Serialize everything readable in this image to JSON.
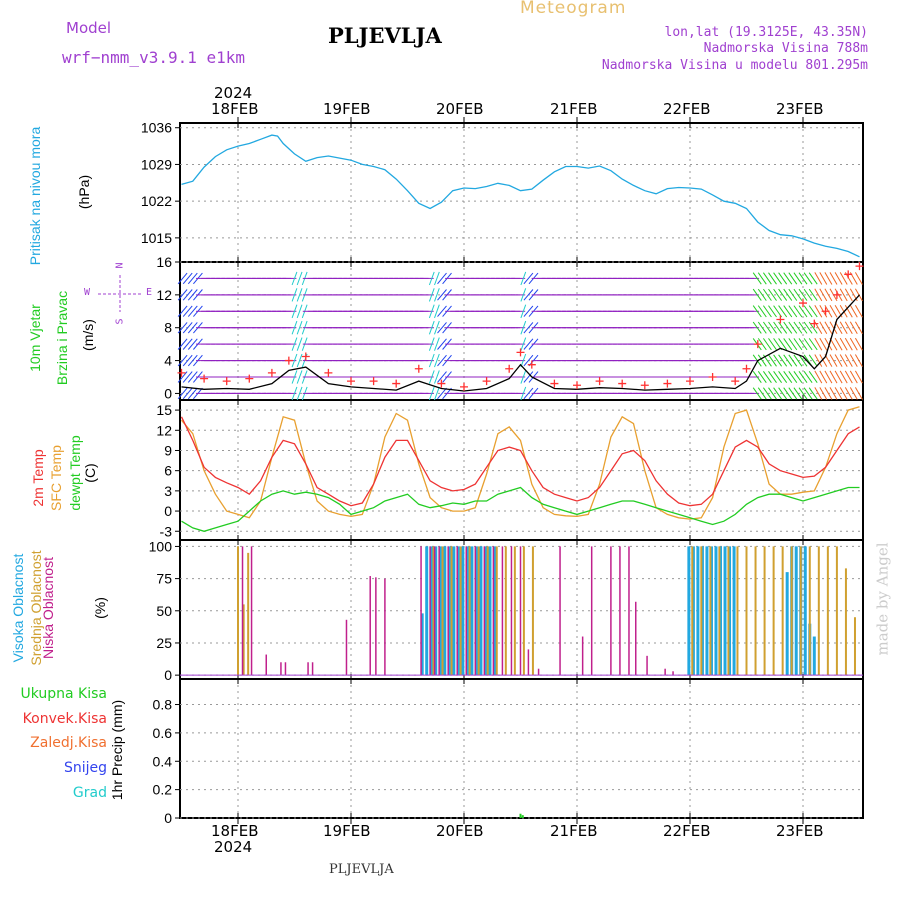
{
  "header": {
    "model_label": "Model",
    "model_name": "wrf−nmm_v3.9.1  e1km",
    "station": "PLJEVLJA",
    "meteogram": "Meteogram",
    "lonlat": "lon,lat (19.3125E, 43.35N)",
    "elevation": "Nadmorska Visina 788m",
    "model_elevation": "Nadmorska Visina u modelu 801.295m"
  },
  "footer": {
    "station": "PLJEVLJA",
    "watermark": "made by Angel"
  },
  "time_axis": {
    "year_top": "2024",
    "year_bottom": "2024",
    "dates": [
      "18FEB",
      "19FEB",
      "20FEB",
      "21FEB",
      "22FEB",
      "23FEB"
    ]
  },
  "wind_legend": {
    "n": "N",
    "s": "S",
    "e": "E",
    "w": "W"
  },
  "colors": {
    "pressure": "#22a8e0",
    "wind_speed": "#000000",
    "wind_gust": "#ff3030",
    "temp2m": "#ee3333",
    "sfc_temp": "#e8a030",
    "dewpoint": "#22cc22",
    "high_cloud": "#22a8e0",
    "mid_cloud": "#d0a030",
    "low_cloud": "#c0208c",
    "arrow_purple": "#9020c0",
    "arrow_blue": "#2244ee",
    "arrow_cyan": "#22cccc",
    "arrow_green": "#22cc22"
  },
  "chart_data": [
    {
      "type": "line",
      "panel": "pressure",
      "ylabel": [
        "Pritisak na nivou mora",
        "(hPa)"
      ],
      "yticks": [
        1015,
        1022,
        1029,
        1036
      ],
      "ylim": [
        1010.4,
        1036.9
      ],
      "x_unit": "days after 18FEB 00UTC",
      "x_range": [
        -0.5,
        5.5
      ],
      "x": [
        -0.5,
        -0.4,
        -0.3,
        -0.2,
        -0.1,
        0.0,
        0.1,
        0.2,
        0.3,
        0.35,
        0.4,
        0.5,
        0.6,
        0.7,
        0.8,
        0.9,
        1.0,
        1.1,
        1.2,
        1.3,
        1.4,
        1.5,
        1.6,
        1.7,
        1.8,
        1.9,
        2.0,
        2.1,
        2.2,
        2.3,
        2.4,
        2.5,
        2.6,
        2.7,
        2.8,
        2.9,
        3.0,
        3.1,
        3.2,
        3.3,
        3.4,
        3.5,
        3.6,
        3.7,
        3.8,
        3.9,
        4.0,
        4.1,
        4.2,
        4.3,
        4.4,
        4.5,
        4.6,
        4.7,
        4.8,
        4.9,
        5.0,
        5.1,
        5.2,
        5.3,
        5.4,
        5.5
      ],
      "series": [
        {
          "name": "Pritisak na nivou mora",
          "values": [
            1025.2,
            1025.8,
            1028.5,
            1030.5,
            1031.8,
            1032.5,
            1033.0,
            1033.8,
            1034.6,
            1034.4,
            1033.0,
            1031.0,
            1029.6,
            1030.3,
            1030.6,
            1030.2,
            1029.8,
            1029.0,
            1028.6,
            1028.0,
            1026.2,
            1024.0,
            1021.6,
            1020.6,
            1021.8,
            1024.0,
            1024.5,
            1024.4,
            1024.8,
            1025.4,
            1025.0,
            1024.0,
            1024.3,
            1026.0,
            1027.6,
            1028.6,
            1028.6,
            1028.3,
            1028.7,
            1027.8,
            1026.2,
            1025.0,
            1024.0,
            1023.4,
            1024.4,
            1024.6,
            1024.5,
            1024.3,
            1023.2,
            1022.0,
            1021.6,
            1020.6,
            1018.0,
            1016.4,
            1015.6,
            1015.4,
            1014.8,
            1014.0,
            1013.4,
            1013.0,
            1012.4,
            1011.4
          ]
        }
      ]
    },
    {
      "type": "line",
      "panel": "wind",
      "ylabel": [
        "10m Vjetar",
        "Brzina i Pravac",
        "(m/s)"
      ],
      "yticks": [
        0,
        4,
        8,
        12,
        16
      ],
      "ylim": [
        -0.8,
        16
      ],
      "x_range": [
        -0.5,
        5.5
      ],
      "x": [
        -0.5,
        -0.3,
        -0.1,
        0.1,
        0.3,
        0.45,
        0.6,
        0.8,
        1.0,
        1.2,
        1.4,
        1.6,
        1.8,
        2.0,
        2.2,
        2.4,
        2.5,
        2.6,
        2.8,
        3.0,
        3.2,
        3.4,
        3.6,
        3.8,
        4.0,
        4.2,
        4.4,
        4.5,
        4.6,
        4.8,
        5.0,
        5.1,
        5.2,
        5.3,
        5.4,
        5.5
      ],
      "series": [
        {
          "name": "speed",
          "values": [
            0.8,
            0.5,
            0.6,
            0.5,
            1.2,
            2.8,
            3.2,
            1.2,
            0.8,
            0.6,
            0.4,
            1.5,
            0.6,
            0.3,
            0.6,
            1.8,
            3.5,
            2.0,
            0.6,
            0.5,
            0.7,
            0.6,
            0.4,
            0.5,
            0.6,
            0.8,
            0.6,
            1.5,
            4.0,
            5.5,
            4.5,
            3.0,
            4.5,
            9.0,
            10.5,
            12.0
          ]
        },
        {
          "name": "gust",
          "values": [
            2.5,
            1.8,
            1.5,
            1.8,
            2.5,
            4.0,
            4.5,
            2.5,
            1.5,
            1.5,
            1.2,
            3.0,
            1.2,
            0.8,
            1.5,
            3.0,
            5.0,
            3.5,
            1.2,
            1.0,
            1.5,
            1.2,
            1.0,
            1.2,
            1.5,
            2.0,
            1.5,
            3.0,
            6.0,
            9.0,
            11.0,
            8.5,
            10.0,
            12.0,
            14.5,
            15.5
          ]
        }
      ]
    },
    {
      "type": "line",
      "panel": "temperature",
      "ylabel": [
        "2m Temp",
        "SFC Temp",
        "dewpt Temp",
        "(C)"
      ],
      "yticks": [
        -3,
        0,
        3,
        6,
        9,
        12,
        15
      ],
      "ylim": [
        -4.3,
        16.5
      ],
      "x_range": [
        -0.5,
        5.5
      ],
      "x": [
        -0.5,
        -0.4,
        -0.3,
        -0.2,
        -0.1,
        0.0,
        0.1,
        0.2,
        0.3,
        0.4,
        0.5,
        0.6,
        0.7,
        0.8,
        0.9,
        1.0,
        1.1,
        1.2,
        1.3,
        1.4,
        1.5,
        1.6,
        1.7,
        1.8,
        1.9,
        2.0,
        2.1,
        2.2,
        2.3,
        2.4,
        2.5,
        2.6,
        2.7,
        2.8,
        2.9,
        3.0,
        3.1,
        3.2,
        3.3,
        3.4,
        3.5,
        3.6,
        3.7,
        3.8,
        3.9,
        4.0,
        4.1,
        4.2,
        4.3,
        4.4,
        4.5,
        4.6,
        4.7,
        4.8,
        4.9,
        5.0,
        5.1,
        5.2,
        5.3,
        5.4,
        5.5
      ],
      "series": [
        {
          "name": "2m Temp",
          "values": [
            14.0,
            10.5,
            6.5,
            5.0,
            4.2,
            3.5,
            2.5,
            4.5,
            8.0,
            10.5,
            10.0,
            7.0,
            3.5,
            2.5,
            1.5,
            0.8,
            1.2,
            4.0,
            8.0,
            10.5,
            10.5,
            7.5,
            4.5,
            3.5,
            3.0,
            3.2,
            4.0,
            6.5,
            9.0,
            9.5,
            9.0,
            6.0,
            3.5,
            2.5,
            2.0,
            1.5,
            2.0,
            3.5,
            6.0,
            8.5,
            9.0,
            7.5,
            4.5,
            2.5,
            1.2,
            0.8,
            1.0,
            2.5,
            6.0,
            9.5,
            10.5,
            9.5,
            7.0,
            6.0,
            5.5,
            5.0,
            5.2,
            6.5,
            9.0,
            11.5,
            12.5
          ]
        },
        {
          "name": "SFC Temp",
          "values": [
            13.5,
            11.5,
            6.0,
            2.5,
            0.0,
            -0.5,
            -1.0,
            1.5,
            8.0,
            14.0,
            13.5,
            7.0,
            1.5,
            0.0,
            -0.5,
            -0.8,
            -0.5,
            4.0,
            11.0,
            14.5,
            13.5,
            7.0,
            2.0,
            0.5,
            0.0,
            0.0,
            0.5,
            5.5,
            11.5,
            12.5,
            10.5,
            4.0,
            0.5,
            -0.5,
            -0.7,
            -0.8,
            -0.5,
            4.0,
            11.0,
            14.0,
            13.0,
            6.0,
            0.5,
            -0.5,
            -1.0,
            -1.2,
            -1.0,
            2.0,
            9.5,
            14.5,
            15.0,
            10.0,
            4.0,
            2.5,
            2.5,
            2.8,
            3.0,
            6.5,
            11.5,
            15.0,
            15.5
          ]
        },
        {
          "name": "dewpt Temp",
          "values": [
            -1.5,
            -2.5,
            -3.0,
            -2.5,
            -2.0,
            -1.5,
            0.0,
            1.5,
            2.5,
            3.0,
            2.5,
            2.8,
            2.5,
            2.0,
            1.0,
            -0.5,
            0.0,
            0.5,
            1.5,
            2.0,
            2.5,
            1.0,
            0.5,
            0.8,
            1.2,
            1.0,
            1.5,
            1.5,
            2.5,
            3.0,
            3.5,
            2.0,
            1.0,
            0.5,
            0.0,
            -0.5,
            0.0,
            0.5,
            1.0,
            1.5,
            1.5,
            1.0,
            0.5,
            0.0,
            -0.5,
            -1.0,
            -1.5,
            -2.0,
            -1.5,
            -0.5,
            1.0,
            2.0,
            2.5,
            2.5,
            2.0,
            1.5,
            2.0,
            2.5,
            3.0,
            3.5,
            3.5
          ]
        }
      ]
    },
    {
      "type": "bar",
      "panel": "clouds",
      "ylabel": [
        "Visoka Oblacnost",
        "Srednja Oblacnost",
        "Niska Oblacnost",
        "(%)"
      ],
      "yticks": [
        0,
        25,
        50,
        75,
        100
      ],
      "ylim": [
        -3,
        105
      ],
      "x_range": [
        -0.5,
        5.5
      ],
      "series": [
        {
          "name": "Visoka Oblacnost",
          "x": [
            1.63,
            1.67,
            1.71,
            1.75,
            1.79,
            1.83,
            1.87,
            1.91,
            1.95,
            1.99,
            2.03,
            2.07,
            2.11,
            2.15,
            2.19,
            2.23,
            2.27,
            3.99,
            4.03,
            4.07,
            4.11,
            4.15,
            4.19,
            4.23,
            4.27,
            4.31,
            4.35,
            4.39,
            4.86,
            4.9,
            4.94,
            4.98,
            5.02,
            5.06,
            5.1
          ],
          "values": [
            48,
            100,
            100,
            100,
            100,
            100,
            100,
            100,
            100,
            100,
            100,
            100,
            100,
            100,
            100,
            100,
            100,
            100,
            100,
            100,
            100,
            100,
            100,
            100,
            100,
            100,
            100,
            100,
            80,
            100,
            100,
            100,
            100,
            40,
            30
          ]
        },
        {
          "name": "Srednja Oblacnost",
          "x": [
            0.0,
            0.05,
            0.09,
            1.73,
            1.81,
            1.89,
            1.97,
            2.05,
            2.13,
            2.21,
            2.29,
            2.37,
            2.45,
            2.53,
            2.61,
            4.02,
            4.1,
            4.18,
            4.26,
            4.34,
            4.42,
            4.5,
            4.58,
            4.66,
            4.74,
            4.82,
            4.9,
            4.98,
            5.06,
            5.14,
            5.22,
            5.3,
            5.38,
            5.46
          ],
          "values": [
            100,
            55,
            95,
            100,
            100,
            100,
            100,
            100,
            100,
            100,
            100,
            100,
            100,
            100,
            100,
            100,
            100,
            100,
            100,
            100,
            100,
            100,
            100,
            100,
            100,
            100,
            100,
            100,
            100,
            100,
            100,
            100,
            83,
            45
          ]
        },
        {
          "name": "Niska Oblacnost",
          "x": [
            0.04,
            0.12,
            0.25,
            0.38,
            0.42,
            0.62,
            0.66,
            0.96,
            1.17,
            1.22,
            1.3,
            1.62,
            1.7,
            1.74,
            1.78,
            1.86,
            1.94,
            2.02,
            2.1,
            2.18,
            2.26,
            2.34,
            2.42,
            2.5,
            2.57,
            2.66,
            2.85,
            3.05,
            3.13,
            3.3,
            3.38,
            3.46,
            3.52,
            3.62,
            3.78,
            3.85
          ],
          "values": [
            100,
            100,
            16,
            10,
            10,
            10,
            10,
            43,
            77,
            76,
            75,
            100,
            100,
            100,
            100,
            100,
            100,
            100,
            100,
            100,
            100,
            100,
            100,
            100,
            20,
            5,
            100,
            30,
            100,
            100,
            100,
            100,
            57,
            15,
            5,
            3
          ]
        }
      ]
    },
    {
      "type": "bar",
      "panel": "precipitation",
      "ylabel": [
        "1hr Precip (mm)"
      ],
      "legend": [
        "Ukupna  Kisa",
        "Konvek.Kisa",
        "Zaledj.Kisa",
        "Snijeg",
        "Grad"
      ],
      "yticks": [
        0,
        0.2,
        0.4,
        0.6,
        0.8
      ],
      "ylim": [
        0,
        0.98
      ],
      "x_range": [
        -0.5,
        5.5
      ],
      "series": [
        {
          "name": "Ukupna  Kisa",
          "x": [
            2.5,
            2.52
          ],
          "values": [
            0.03,
            0.02
          ]
        }
      ]
    }
  ]
}
